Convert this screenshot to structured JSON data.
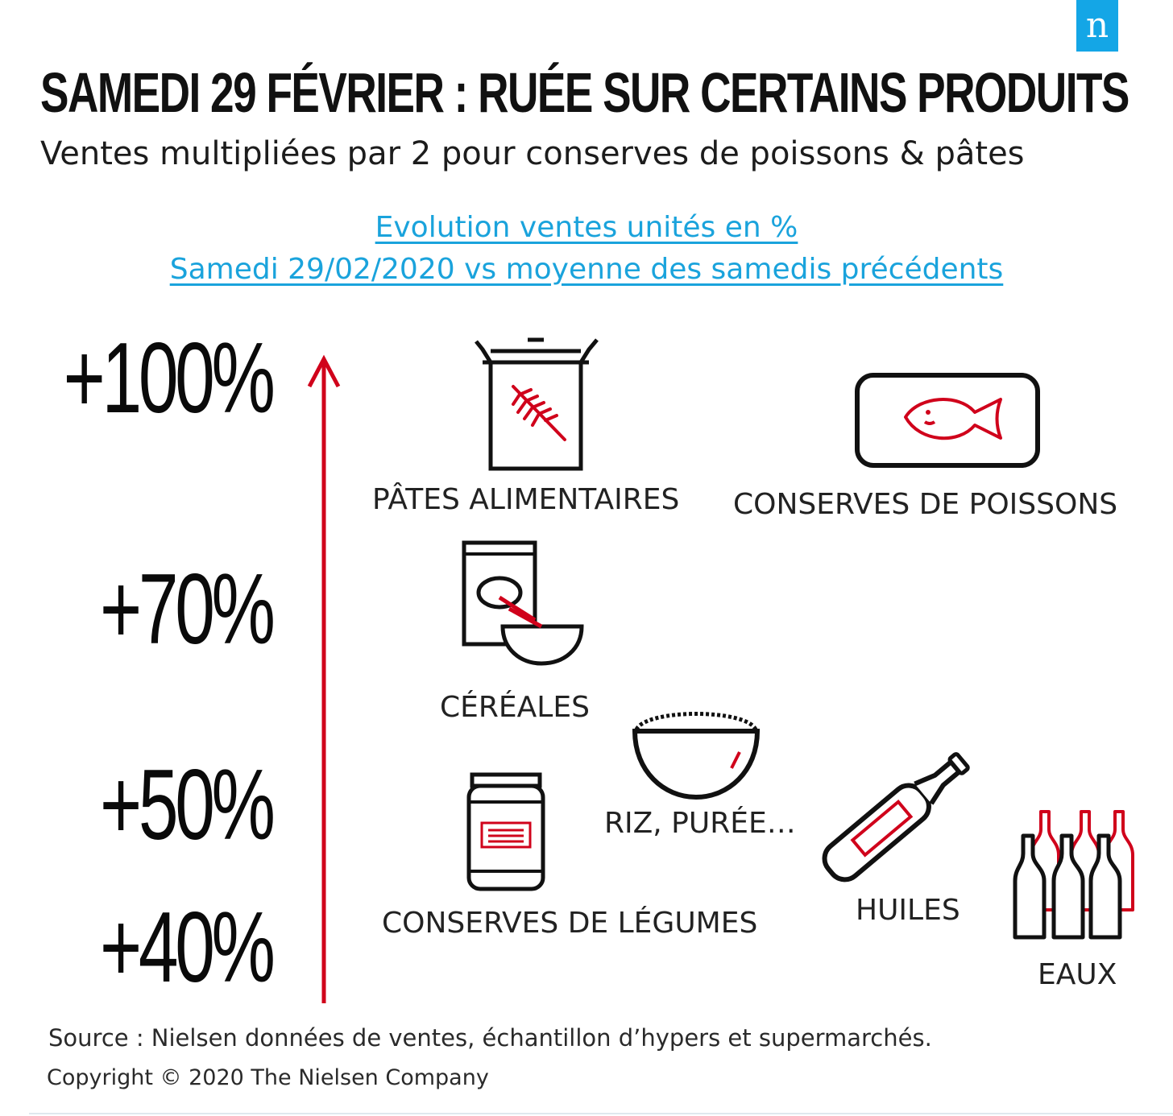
{
  "brand": {
    "logo_letter": "n",
    "logo_color": "#14a6e6"
  },
  "header": {
    "title": "SAMEDI 29 FÉVRIER : RUÉE SUR CERTAINS PRODUITS",
    "subtitle": "Ventes multipliées par 2 pour conserves de poissons & pâtes"
  },
  "scale_caption": {
    "line1": "Evolution ventes unités en %",
    "line2": "Samedi 29/02/2020 vs moyenne  des samedis précédents",
    "color": "#1aa3dc"
  },
  "scale": {
    "arrow_color": "#d0021b",
    "levels": [
      "+100%",
      "+70%",
      "+50%",
      "+40%"
    ]
  },
  "products": [
    {
      "label": "PÂTES ALIMENTAIRES",
      "icon": "pasta-box-icon",
      "level": "+100%"
    },
    {
      "label": "CONSERVES DE POISSONS",
      "icon": "fish-can-icon",
      "level": "+100%"
    },
    {
      "label": "CÉRÉALES",
      "icon": "cereal-box-icon",
      "level": "+70%"
    },
    {
      "label": "RIZ, PURÉE…",
      "icon": "rice-bowl-icon",
      "level": "+50%"
    },
    {
      "label": "CONSERVES DE LÉGUMES",
      "icon": "jar-icon",
      "level": "+40%"
    },
    {
      "label": "HUILES",
      "icon": "oil-bottle-icon",
      "level": "+40%"
    },
    {
      "label": "EAUX",
      "icon": "water-bottles-icon",
      "level": "+40%"
    }
  ],
  "accent_color": "#d0021b",
  "footer": {
    "source": "Source : Nielsen données de ventes, échantillon d’hypers et supermarchés.",
    "copyright": "Copyright © 2020 The Nielsen Company"
  }
}
